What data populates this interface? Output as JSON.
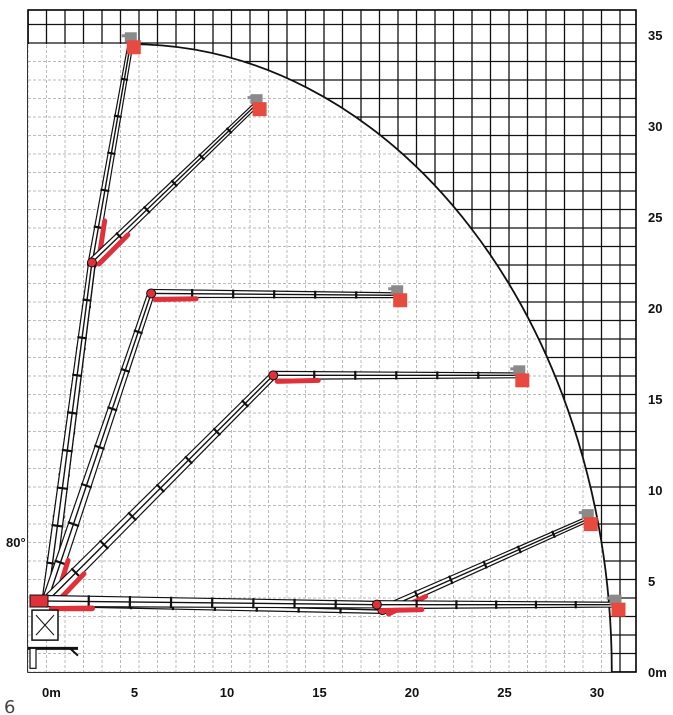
{
  "chart_data": {
    "type": "diagram",
    "x_axis": {
      "min": 0,
      "max": 31,
      "ticks": [
        0,
        5,
        10,
        15,
        20,
        25,
        30
      ],
      "tick_labels": [
        "0m",
        "5",
        "10",
        "15",
        "20",
        "25",
        "30"
      ]
    },
    "y_axis": {
      "min": 0,
      "max": 35,
      "ticks": [
        0,
        5,
        10,
        15,
        20,
        25,
        30,
        35
      ],
      "tick_labels": [
        "0m",
        "5",
        "10",
        "15",
        "20",
        "25",
        "30",
        "35"
      ]
    },
    "grid": true,
    "envelope": {
      "max_reach": 30.5,
      "max_height": 34.5
    },
    "boom_angle_label": "80°",
    "page_number": "6",
    "booms": [
      {
        "name": "",
        "points": [
          [
            0.3,
            3.9
          ],
          [
            2.7,
            22.4
          ],
          [
            4.8,
            34.6
          ]
        ],
        "basket": [
          4.8,
          34.6
        ]
      },
      {
        "name": "",
        "points": [
          [
            0.3,
            3.9
          ],
          [
            2.7,
            22.5
          ],
          [
            11.6,
            31.2
          ]
        ],
        "basket": [
          11.6,
          31.2
        ]
      },
      {
        "name": "",
        "points": [
          [
            0.3,
            3.9
          ],
          [
            5.9,
            20.8
          ],
          [
            19.2,
            20.7
          ]
        ],
        "basket": [
          19.2,
          20.7
        ]
      },
      {
        "name": "",
        "points": [
          [
            0.3,
            3.9
          ],
          [
            12.5,
            16.3
          ],
          [
            25.8,
            16.3
          ]
        ],
        "basket": [
          25.8,
          16.3
        ]
      },
      {
        "name": "",
        "points": [
          [
            0.3,
            3.9
          ],
          [
            18.4,
            3.4
          ],
          [
            29.5,
            8.4
          ]
        ],
        "basket": [
          29.5,
          8.4
        ]
      },
      {
        "name": "",
        "points": [
          [
            0.3,
            3.9
          ],
          [
            18.1,
            3.7
          ],
          [
            31.0,
            3.7
          ]
        ],
        "basket": [
          31.0,
          3.7
        ]
      }
    ],
    "colors": {
      "boom_red": "#e0303a",
      "basket_red": "#e94a3f",
      "basket_grey": "#8a8a8a",
      "grid": "#111111",
      "dashed_grid": "#bbbbbb"
    }
  }
}
